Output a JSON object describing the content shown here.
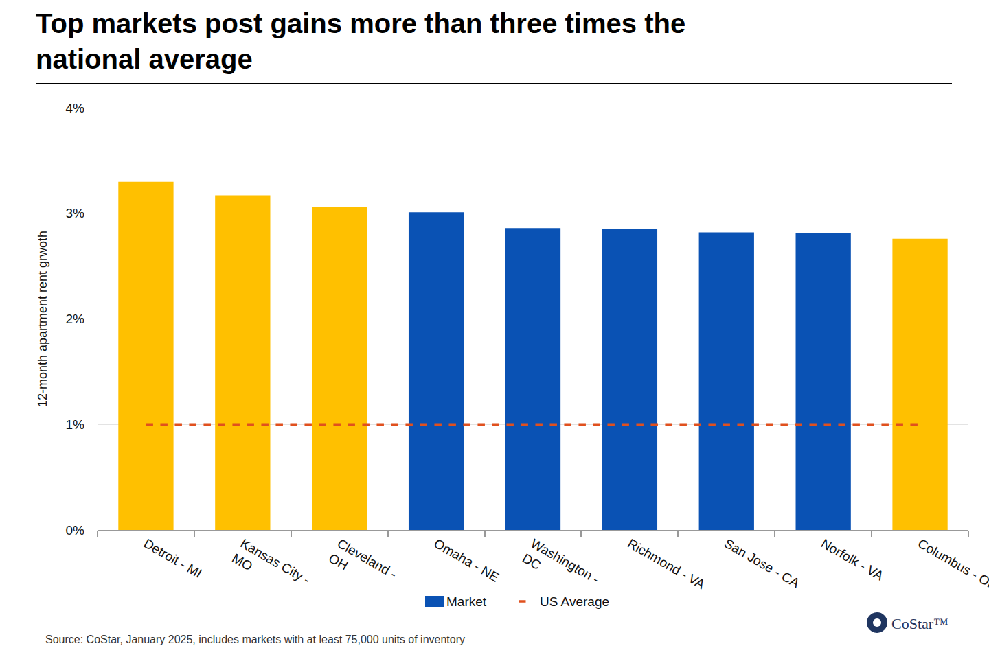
{
  "chart_data": {
    "type": "bar",
    "title": "Top markets post gains more than three times the national average",
    "y_label": "12-month apartment rent grwoth",
    "categories": [
      "Detroit - MI",
      "Kansas City - MO",
      "Cleveland - OH",
      "Omaha - NE",
      "Washington - DC",
      "Richmond - VA",
      "San Jose - CA",
      "Norfolk - VA",
      "Columbus - OH"
    ],
    "series": [
      {
        "name": "Market",
        "type": "bar",
        "color": "#0A52B4",
        "colors": [
          "#FFC000",
          "#FFC000",
          "#FFC000",
          "#0A52B4",
          "#0A52B4",
          "#0A52B4",
          "#0A52B4",
          "#0A52B4",
          "#FFC000"
        ],
        "values": [
          3.3,
          3.17,
          3.06,
          3.01,
          2.86,
          2.85,
          2.82,
          2.81,
          2.76
        ]
      },
      {
        "name": "US Average",
        "type": "line",
        "line_style": "dash",
        "color": "#E0501E",
        "values": [
          1,
          1,
          1,
          1,
          1,
          1,
          1,
          1,
          1
        ]
      }
    ],
    "ylim": [
      0,
      4
    ],
    "yticks": [
      {
        "value": 0,
        "label": "0%"
      },
      {
        "value": 1,
        "label": "1%"
      },
      {
        "value": 2,
        "label": "2%"
      },
      {
        "value": 3,
        "label": "3%"
      },
      {
        "value": 4,
        "label": "4%"
      }
    ],
    "grid": true,
    "legend": "bottom",
    "source": "Source: CoStar, January 2025, includes markets with at least 75,000 units of inventory",
    "brand": "CoStar™"
  }
}
